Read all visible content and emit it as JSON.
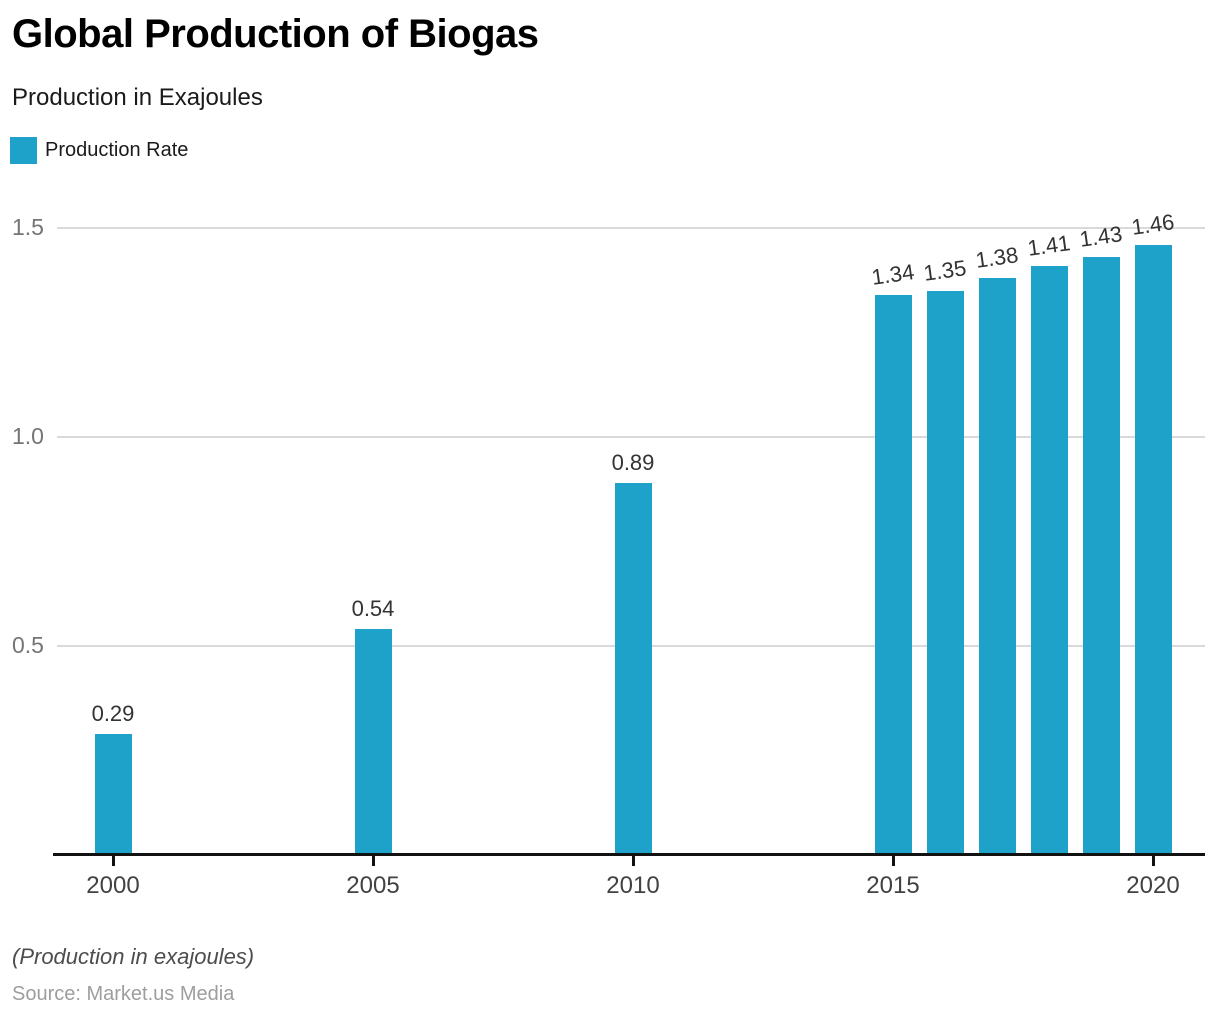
{
  "header": {
    "title": "Global Production of Biogas",
    "subtitle": "Production in Exajoules"
  },
  "legend": {
    "items": [
      {
        "label": "Production Rate",
        "color": "#1ea2c9"
      }
    ]
  },
  "chart_data": {
    "type": "bar",
    "title": "Global Production of Biogas",
    "subtitle": "Production in Exajoules",
    "series": [
      {
        "name": "Production Rate",
        "x": [
          2000,
          2005,
          2010,
          2015,
          2016,
          2017,
          2018,
          2019,
          2020
        ],
        "values": [
          0.29,
          0.54,
          0.89,
          1.34,
          1.35,
          1.38,
          1.41,
          1.43,
          1.46
        ],
        "data_labels": [
          "0.29",
          "0.54",
          "0.89",
          "1.34",
          "1.35",
          "1.38",
          "1.41",
          "1.43",
          "1.46"
        ]
      }
    ],
    "xlabel": "",
    "ylabel": "Production in Exajoules",
    "x_tick_years": [
      2000,
      2005,
      2010,
      2015,
      2020
    ],
    "x_tick_labels": [
      "2000",
      "2005",
      "2010",
      "2015",
      "2020"
    ],
    "y_ticks": [
      0.5,
      1.0,
      1.5
    ],
    "y_tick_labels": [
      "0.5",
      "1.0",
      "1.5"
    ],
    "ylim": [
      0,
      1.5
    ],
    "xlim_years": [
      2000,
      2020
    ],
    "grid": true,
    "legend_position": "top-left",
    "data_labels_shown": true
  },
  "colors": {
    "bar": "#1ea2c9",
    "gridline": "#d9d9d9",
    "axis": "#111111",
    "y_tick_text": "#757575",
    "x_tick_text": "#424242",
    "data_label_text": "#333333"
  },
  "footer": {
    "note": "(Production in exajoules)",
    "source": "Source: Market.us Media"
  }
}
